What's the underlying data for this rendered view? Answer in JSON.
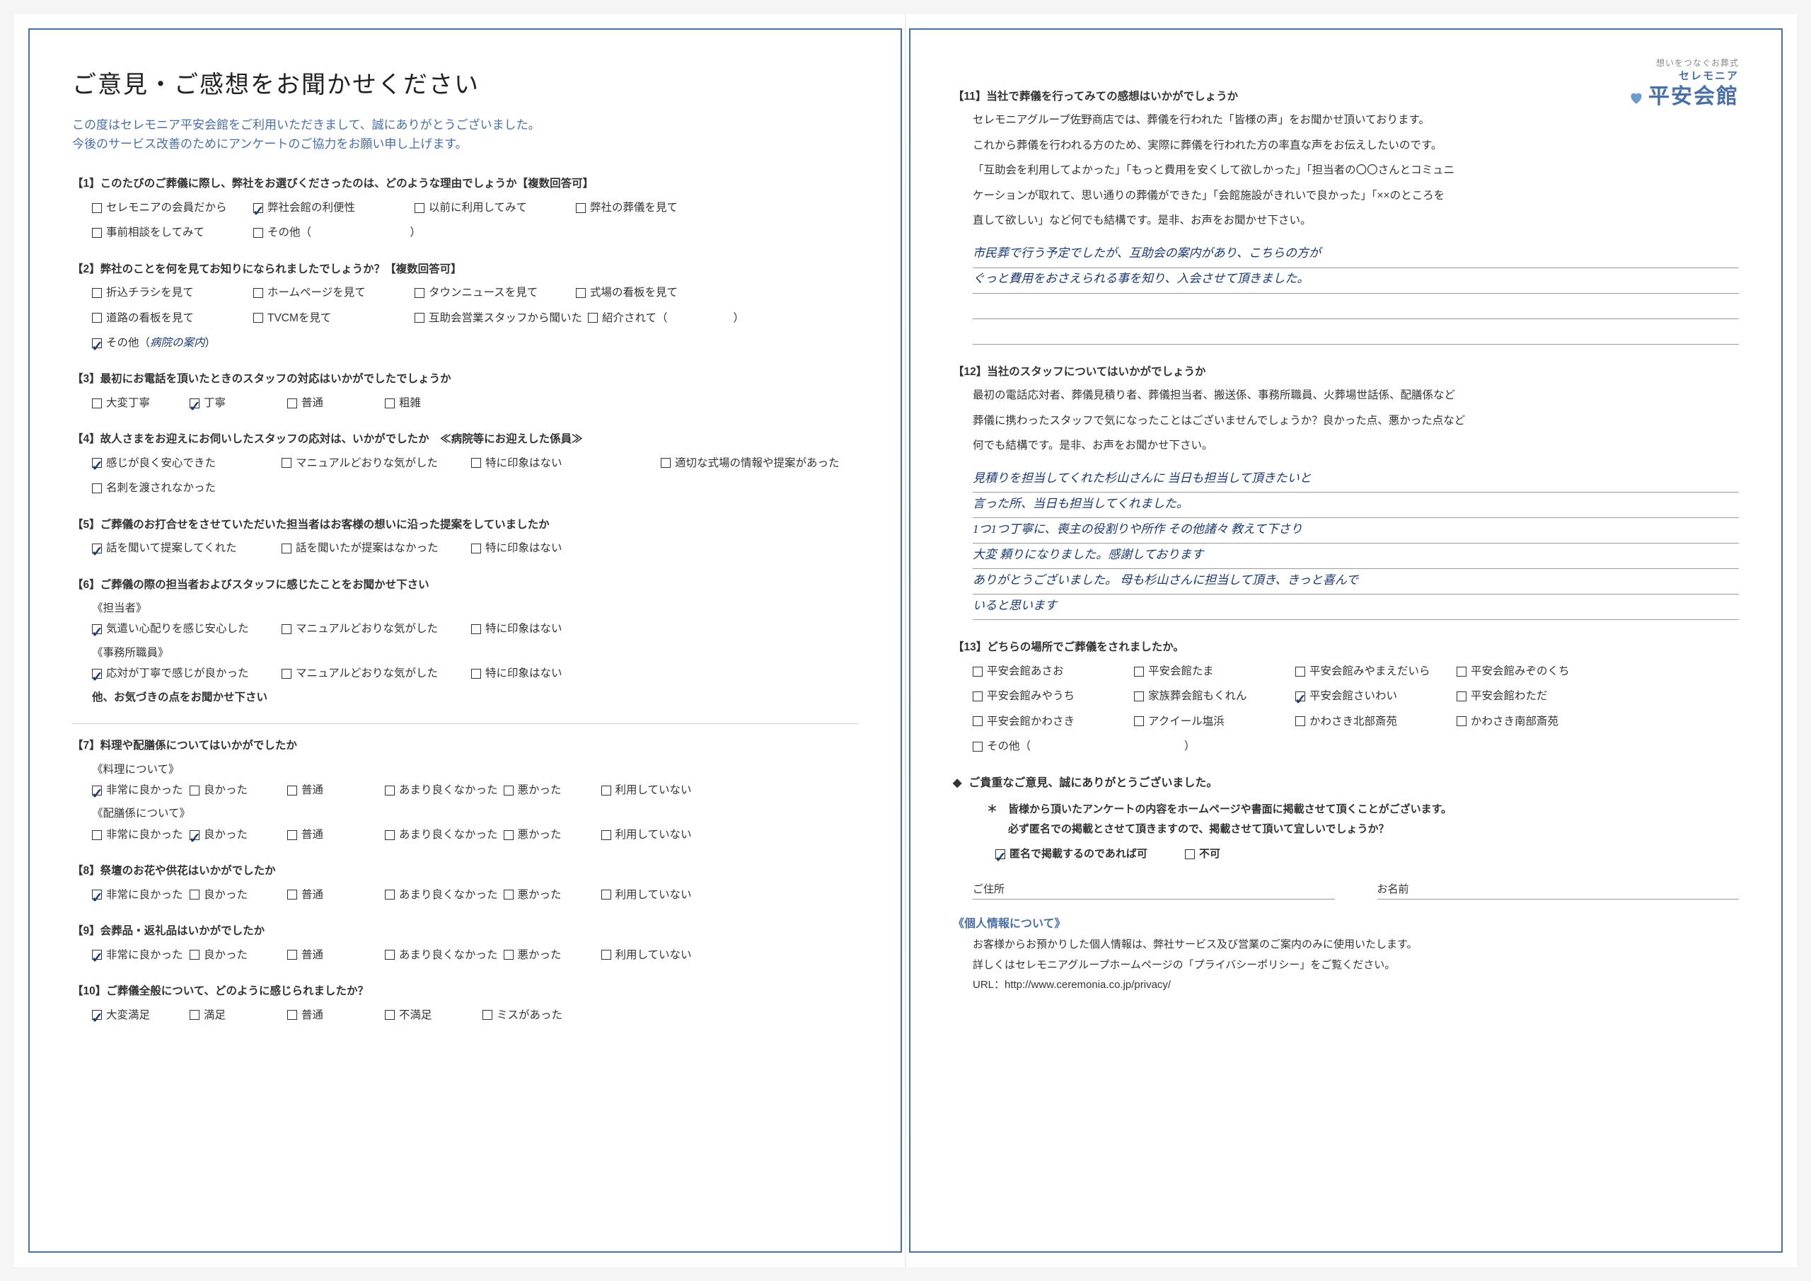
{
  "title": "ご意見・ご感想をお聞かせください",
  "intro_line1": "この度はセレモニア平安会館をご利用いただきまして、誠にありがとうございました。",
  "intro_line2": "今後のサービス改善のためにアンケートのご協力をお願い申し上げます。",
  "logo": {
    "small": "想いをつなぐお葬式",
    "ceremonia": "セレモニア",
    "main": "平安会館"
  },
  "q1": {
    "title": "【1】このたびのご葬儀に際し、弊社をお選びくださったのは、どのような理由でしょうか【複数回答可】",
    "opts": [
      {
        "label": "セレモニアの会員だから",
        "checked": false
      },
      {
        "label": "弊社会館の利便性",
        "checked": true
      },
      {
        "label": "以前に利用してみて",
        "checked": false
      },
      {
        "label": "弊社の葬儀を見て",
        "checked": false
      },
      {
        "label": "事前相談をしてみて",
        "checked": false
      },
      {
        "label": "その他（　　　　　　　　　）",
        "checked": false
      }
    ]
  },
  "q2": {
    "title": "【2】弊社のことを何を見てお知りになられましたでしょうか？【複数回答可】",
    "opts": [
      {
        "label": "折込チラシを見て",
        "checked": false
      },
      {
        "label": "ホームページを見て",
        "checked": false
      },
      {
        "label": "タウンニュースを見て",
        "checked": false
      },
      {
        "label": "式場の看板を見て",
        "checked": false
      },
      {
        "label": "道路の看板を見て",
        "checked": false
      },
      {
        "label": "TVCMを見て",
        "checked": false
      },
      {
        "label": "互助会営業スタッフから聞いた",
        "checked": false
      },
      {
        "label": "紹介されて（　　　　　　）",
        "checked": false
      },
      {
        "label": "その他（",
        "checked": true,
        "hand": "病院の案内",
        "tail": "）"
      }
    ]
  },
  "q3": {
    "title": "【3】最初にお電話を頂いたときのスタッフの対応はいかがでしたでしょうか",
    "opts": [
      {
        "label": "大変丁寧",
        "checked": false
      },
      {
        "label": "丁寧",
        "checked": true
      },
      {
        "label": "普通",
        "checked": false
      },
      {
        "label": "粗雑",
        "checked": false
      }
    ]
  },
  "q4": {
    "title": "【4】故人さまをお迎えにお伺いしたスタッフの応対は、いかがでしたか　≪病院等にお迎えした係員≫",
    "opts": [
      {
        "label": "感じが良く安心できた",
        "checked": true
      },
      {
        "label": "マニュアルどおりな気がした",
        "checked": false
      },
      {
        "label": "特に印象はない",
        "checked": false
      },
      {
        "label": "適切な式場の情報や提案があった",
        "checked": false
      },
      {
        "label": "名刺を渡されなかった",
        "checked": false
      }
    ]
  },
  "q5": {
    "title": "【5】ご葬儀のお打合せをさせていただいた担当者はお客様の想いに沿った提案をしていましたか",
    "opts": [
      {
        "label": "話を聞いて提案してくれた",
        "checked": true
      },
      {
        "label": "話を聞いたが提案はなかった",
        "checked": false
      },
      {
        "label": "特に印象はない",
        "checked": false
      }
    ]
  },
  "q6": {
    "title": "【6】ご葬儀の際の担当者およびスタッフに感じたことをお聞かせ下さい",
    "sub1": "《担当者》",
    "opts1": [
      {
        "label": "気遣い心配りを感じ安心した",
        "checked": true
      },
      {
        "label": "マニュアルどおりな気がした",
        "checked": false
      },
      {
        "label": "特に印象はない",
        "checked": false
      }
    ],
    "sub2": "《事務所職員》",
    "opts2": [
      {
        "label": "応対が丁寧で感じが良かった",
        "checked": true
      },
      {
        "label": "マニュアルどおりな気がした",
        "checked": false
      },
      {
        "label": "特に印象はない",
        "checked": false
      }
    ],
    "note": "他、お気づきの点をお聞かせ下さい"
  },
  "q7": {
    "title": "【7】料理や配膳係についてはいかがでしたか",
    "sub1": "《料理について》",
    "sub2": "《配膳係について》",
    "scale": [
      "非常に良かった",
      "良かった",
      "普通",
      "あまり良くなかった",
      "悪かった",
      "利用していない"
    ],
    "checked1": 0,
    "checked2": 1
  },
  "q8": {
    "title": "【8】祭壇のお花や供花はいかがでしたか",
    "scale": [
      "非常に良かった",
      "良かった",
      "普通",
      "あまり良くなかった",
      "悪かった",
      "利用していない"
    ],
    "checked": 0
  },
  "q9": {
    "title": "【9】会葬品・返礼品はいかがでしたか",
    "scale": [
      "非常に良かった",
      "良かった",
      "普通",
      "あまり良くなかった",
      "悪かった",
      "利用していない"
    ],
    "checked": 0
  },
  "q10": {
    "title": "【10】ご葬儀全般について、どのように感じられましたか？",
    "opts": [
      {
        "label": "大変満足",
        "checked": true
      },
      {
        "label": "満足",
        "checked": false
      },
      {
        "label": "普通",
        "checked": false
      },
      {
        "label": "不満足",
        "checked": false
      },
      {
        "label": "ミスがあった",
        "checked": false
      }
    ]
  },
  "q11": {
    "title": "【11】当社で葬儀を行ってみての感想はいかがでしょうか",
    "body": [
      "セレモニアグループ佐野商店では、葬儀を行われた「皆様の声」をお聞かせ頂いております。",
      "これから葬儀を行われる方のため、実際に葬儀を行われた方の率直な声をお伝えしたいのです。",
      "「互助会を利用してよかった」「もっと費用を安くして欲しかった」「担当者の〇〇さんとコミュニ",
      "ケーションが取れて、思い通りの葬儀ができた」「会館施設がきれいで良かった」「××のところを",
      "直して欲しい」など何でも結構です。是非、お声をお聞かせ下さい。"
    ],
    "lines": [
      "市民葬で行う予定でしたが、互助会の案内があり、こちらの方が",
      "ぐっと費用をおさえられる事を知り、入会させて頂きました。",
      "",
      ""
    ]
  },
  "q12": {
    "title": "【12】当社のスタッフについてはいかがでしょうか",
    "body": [
      "最初の電話応対者、葬儀見積り者、葬儀担当者、搬送係、事務所職員、火葬場世話係、配膳係など",
      "葬儀に携わったスタッフで気になったことはございませんでしょうか？良かった点、悪かった点など",
      "何でも結構です。是非、お声をお聞かせ下さい。"
    ],
    "lines": [
      "見積りを担当してくれた杉山さんに 当日も担当して頂きたいと",
      "言った所、当日も担当してくれました。",
      "1つ1つ丁寧に、喪主の役割りや所作 その他諸々 教えて下さり",
      "大変 頼りになりました。感謝しております",
      "ありがとうございました。 母も杉山さんに担当して頂き、きっと喜んで",
      "いると思います"
    ]
  },
  "q13": {
    "title": "【13】どちらの場所でご葬儀をされましたか。",
    "opts": [
      {
        "label": "平安会館あさお",
        "checked": false
      },
      {
        "label": "平安会館たま",
        "checked": false
      },
      {
        "label": "平安会館みやまえだいら",
        "checked": false
      },
      {
        "label": "平安会館みぞのくち",
        "checked": false
      },
      {
        "label": "平安会館みやうち",
        "checked": false
      },
      {
        "label": "家族葬会館もくれん",
        "checked": false
      },
      {
        "label": "平安会館さいわい",
        "checked": true
      },
      {
        "label": "平安会館わただ",
        "checked": false
      },
      {
        "label": "平安会館かわさき",
        "checked": false
      },
      {
        "label": "アクイール塩浜",
        "checked": false
      },
      {
        "label": "かわさき北部斎苑",
        "checked": false
      },
      {
        "label": "かわさき南部斎苑",
        "checked": false
      },
      {
        "label": "その他（　　　　　　　　　　　　　　）",
        "checked": false
      }
    ]
  },
  "thanks": "ご貴重なご意見、誠にありがとうございました。",
  "notice1": "皆様から頂いたアンケートの内容をホームページや書面に掲載させて頂くことがございます。",
  "notice2": "必ず匿名での掲載とさせて頂きますので、掲載させて頂いて宜しいでしょうか？",
  "consent": {
    "yes": "匿名で掲載するのであれば可",
    "no": "不可",
    "checked": "yes"
  },
  "sig_addr": "ご住所",
  "sig_name": "お名前",
  "privacy_title": "《個人情報について》",
  "privacy_body1": "お客様からお預かりした個人情報は、弊社サービス及び営業のご案内のみに使用いたします。",
  "privacy_body2": "詳しくはセレモニアグループホームページの「プライバシーポリシー」をご覧ください。",
  "privacy_url": "URL：http://www.ceremonia.co.jp/privacy/"
}
